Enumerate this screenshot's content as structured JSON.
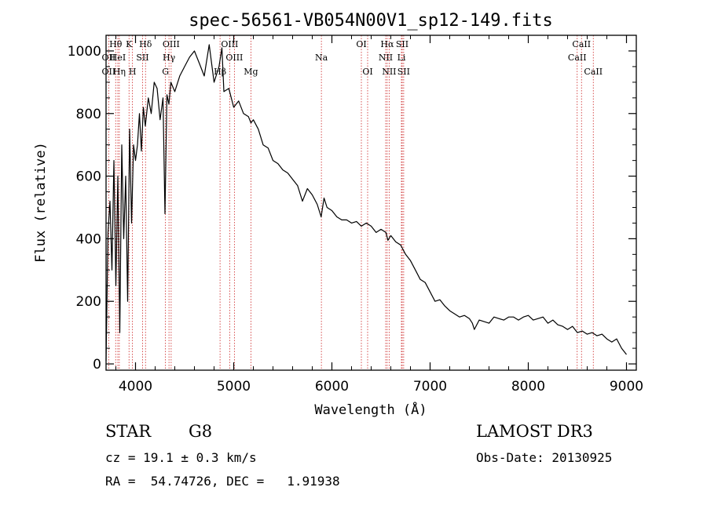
{
  "chart_data": {
    "type": "line",
    "title": "spec-56561-VB054N00V1_sp12-149.fits",
    "xlabel": "Wavelength (Å)",
    "ylabel": "Flux (relative)",
    "xlim": [
      3700,
      9100
    ],
    "ylim": [
      -20,
      1050
    ],
    "xticks": [
      4000,
      5000,
      6000,
      7000,
      8000,
      9000
    ],
    "xtick_labels": [
      "4000",
      "5000",
      "6000",
      "7000",
      "8000",
      "9000"
    ],
    "yticks": [
      0,
      200,
      400,
      600,
      800,
      1000
    ],
    "ytick_labels": [
      "0",
      "200",
      "400",
      "600",
      "800",
      "1000"
    ],
    "spectrum": {
      "x": [
        3700,
        3720,
        3740,
        3760,
        3780,
        3800,
        3820,
        3840,
        3860,
        3880,
        3900,
        3920,
        3940,
        3960,
        3980,
        4000,
        4020,
        4040,
        4060,
        4080,
        4100,
        4130,
        4160,
        4190,
        4220,
        4250,
        4280,
        4300,
        4320,
        4340,
        4360,
        4400,
        4450,
        4500,
        4550,
        4600,
        4650,
        4700,
        4750,
        4800,
        4850,
        4880,
        4900,
        4950,
        5000,
        5050,
        5100,
        5150,
        5175,
        5200,
        5250,
        5300,
        5350,
        5400,
        5450,
        5500,
        5550,
        5600,
        5650,
        5700,
        5750,
        5800,
        5850,
        5890,
        5920,
        5950,
        6000,
        6050,
        6100,
        6150,
        6200,
        6250,
        6300,
        6350,
        6400,
        6450,
        6500,
        6550,
        6570,
        6600,
        6650,
        6700,
        6750,
        6800,
        6850,
        6900,
        6950,
        7000,
        7050,
        7100,
        7150,
        7200,
        7250,
        7300,
        7350,
        7400,
        7430,
        7450,
        7500,
        7550,
        7600,
        7650,
        7700,
        7750,
        7800,
        7850,
        7900,
        7950,
        8000,
        8050,
        8100,
        8150,
        8200,
        8250,
        8300,
        8350,
        8400,
        8450,
        8500,
        8550,
        8600,
        8650,
        8700,
        8750,
        8800,
        8850,
        8900,
        8950,
        9000
      ],
      "y": [
        10,
        420,
        520,
        300,
        650,
        250,
        600,
        100,
        700,
        400,
        600,
        200,
        750,
        450,
        700,
        650,
        700,
        800,
        680,
        820,
        760,
        850,
        800,
        900,
        880,
        780,
        850,
        480,
        860,
        830,
        900,
        870,
        920,
        950,
        980,
        1000,
        960,
        920,
        1020,
        900,
        950,
        1010,
        870,
        880,
        820,
        840,
        800,
        790,
        770,
        780,
        750,
        700,
        690,
        650,
        640,
        620,
        610,
        590,
        570,
        520,
        560,
        540,
        510,
        470,
        530,
        500,
        490,
        470,
        460,
        460,
        450,
        455,
        440,
        450,
        440,
        420,
        430,
        420,
        395,
        410,
        390,
        380,
        350,
        330,
        300,
        270,
        260,
        230,
        200,
        205,
        185,
        170,
        160,
        150,
        155,
        145,
        130,
        110,
        140,
        135,
        130,
        150,
        145,
        140,
        150,
        150,
        140,
        150,
        155,
        140,
        145,
        150,
        130,
        140,
        125,
        120,
        110,
        120,
        100,
        105,
        95,
        100,
        90,
        95,
        80,
        70,
        80,
        50,
        30
      ]
    },
    "lines": [
      {
        "label": "Hθ",
        "x": 3798,
        "row": 0
      },
      {
        "label": "OII",
        "x": 3727,
        "row": 1
      },
      {
        "label": "OII",
        "x": 3727,
        "row": 2
      },
      {
        "label": "HeI",
        "x": 3820,
        "row": 1
      },
      {
        "label": "Hη",
        "x": 3835,
        "row": 2
      },
      {
        "label": "K",
        "x": 3934,
        "row": 0
      },
      {
        "label": "SII",
        "x": 4072,
        "row": 1
      },
      {
        "label": "H",
        "x": 3969,
        "row": 2
      },
      {
        "label": "Hδ",
        "x": 4102,
        "row": 0
      },
      {
        "label": "OIII",
        "x": 4363,
        "row": 0
      },
      {
        "label": "Hγ",
        "x": 4341,
        "row": 1
      },
      {
        "label": "G",
        "x": 4305,
        "row": 2
      },
      {
        "label": "Hβ",
        "x": 4861,
        "row": 2
      },
      {
        "label": "OIII",
        "x": 4959,
        "row": 0
      },
      {
        "label": "OIII",
        "x": 5007,
        "row": 1
      },
      {
        "label": "Mg",
        "x": 5175,
        "row": 2
      },
      {
        "label": "Na",
        "x": 5893,
        "row": 1
      },
      {
        "label": "OI",
        "x": 6300,
        "row": 0
      },
      {
        "label": "OI",
        "x": 6364,
        "row": 2
      },
      {
        "label": "Hα",
        "x": 6563,
        "row": 0
      },
      {
        "label": "NII",
        "x": 6548,
        "row": 1
      },
      {
        "label": "NII",
        "x": 6583,
        "row": 2
      },
      {
        "label": "SII",
        "x": 6716,
        "row": 0
      },
      {
        "label": "Li",
        "x": 6708,
        "row": 1
      },
      {
        "label": "SII",
        "x": 6731,
        "row": 2
      },
      {
        "label": "CaII",
        "x": 8542,
        "row": 0
      },
      {
        "label": "CaII",
        "x": 8498,
        "row": 1
      },
      {
        "label": "CaII",
        "x": 8662,
        "row": 2
      }
    ]
  },
  "info": {
    "object_class": "STAR",
    "subclass": "G8",
    "survey": "LAMOST DR3",
    "redshift": "cz = 19.1 ± 0.3 km/s",
    "obs_date": "Obs-Date: 20130925",
    "coords": "RA =  54.74726, DEC =   1.91938"
  }
}
